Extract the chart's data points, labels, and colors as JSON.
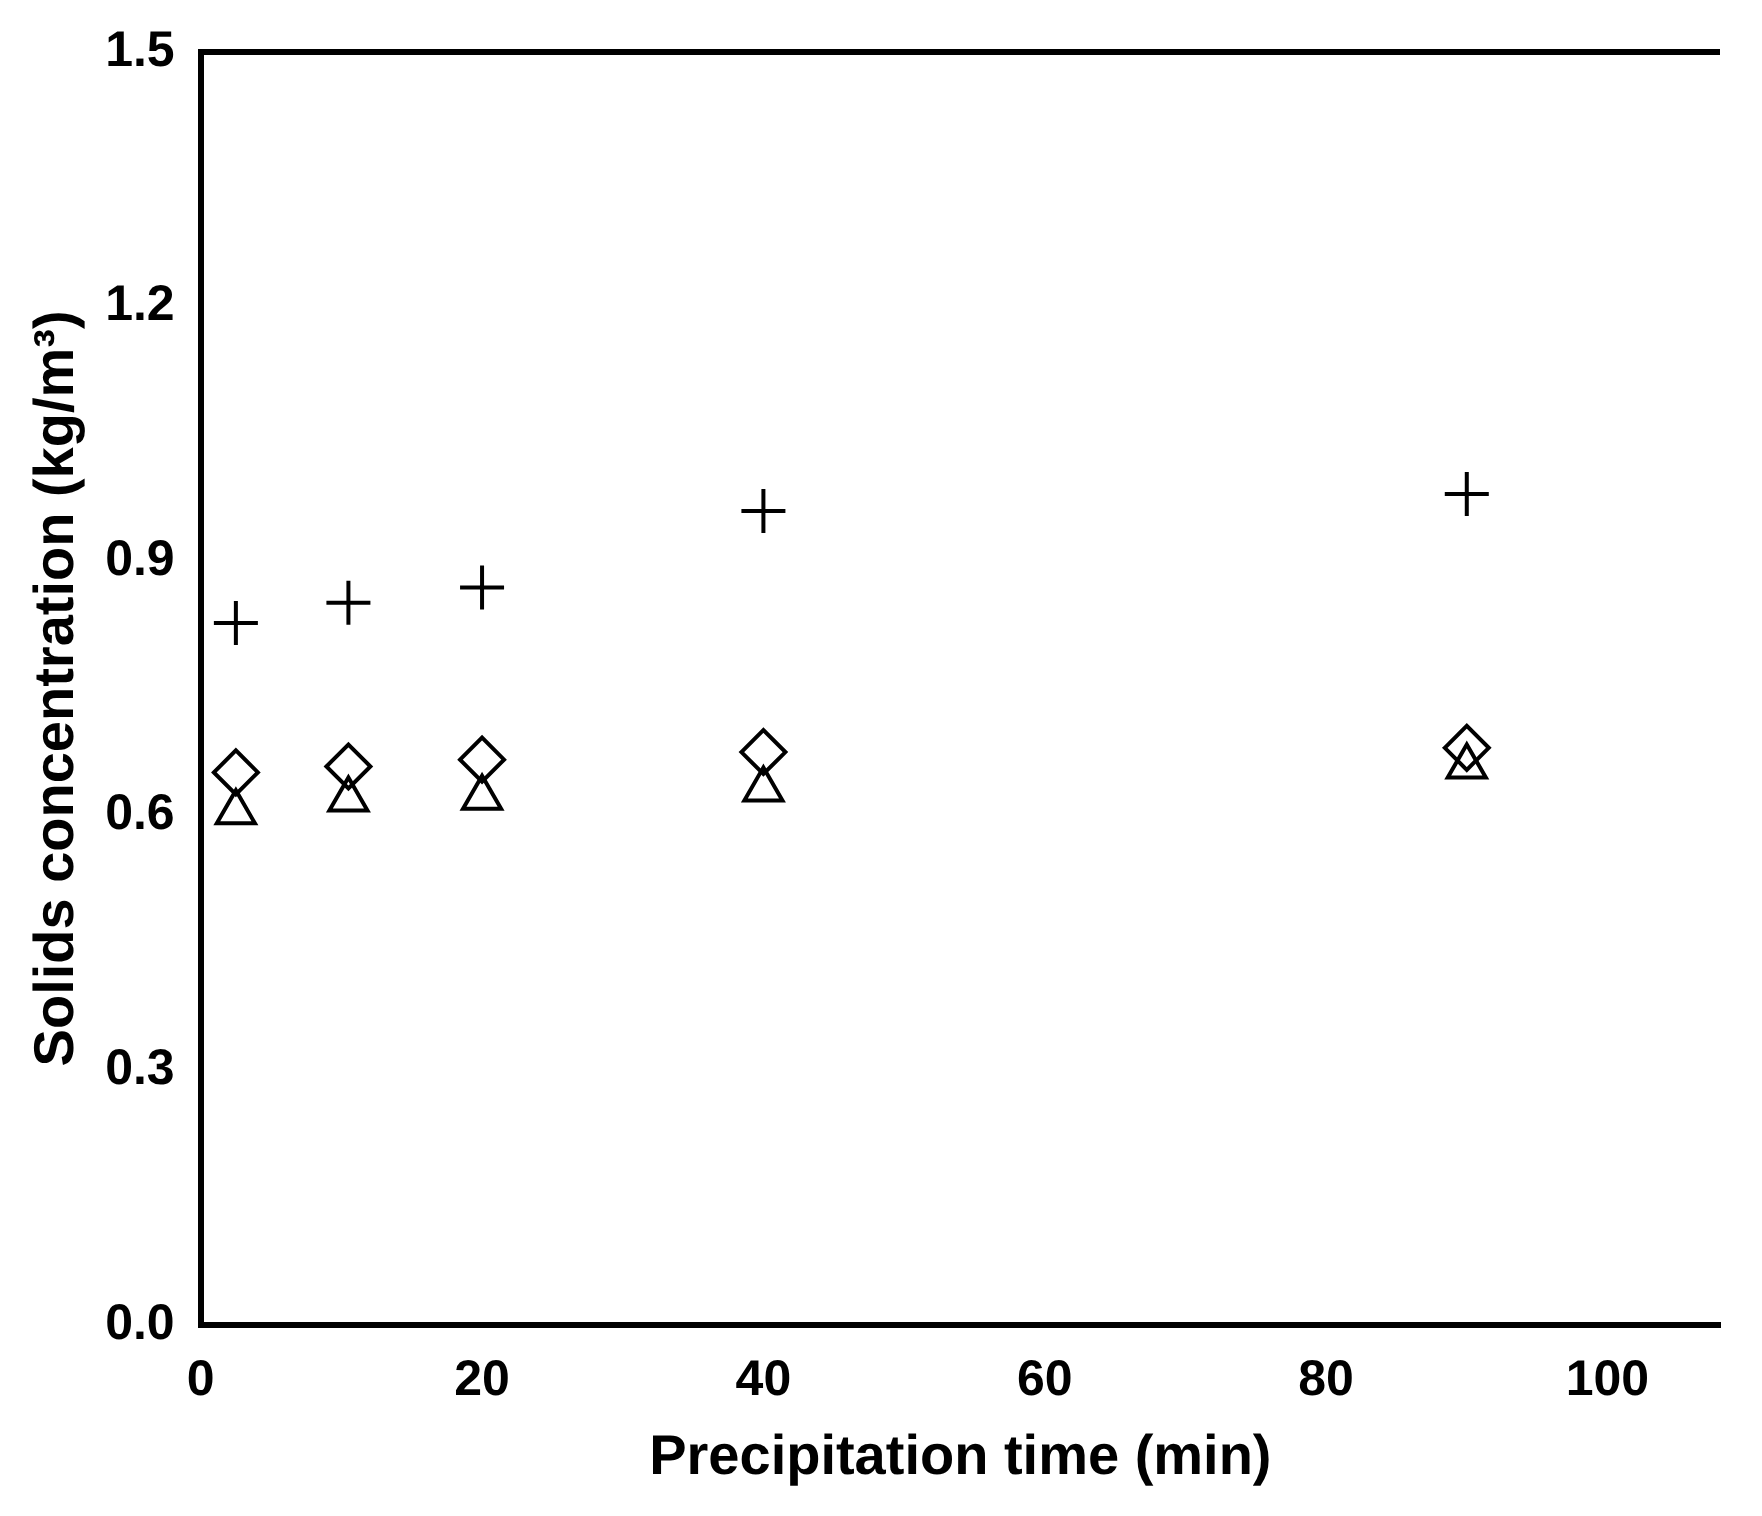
{
  "chart_data": {
    "type": "scatter",
    "xlabel": "Precipitation time (min)",
    "ylabel": "Solids concentration (kg/m³)",
    "x": [
      2.5,
      10.5,
      20,
      40,
      90
    ],
    "series": [
      {
        "color": "#000000",
        "marker": "cross",
        "values": [
          0.827,
          0.851,
          0.869,
          0.959,
          0.979
        ]
      },
      {
        "color": "#000000",
        "marker": "diamond",
        "values": [
          0.651,
          0.658,
          0.666,
          0.675,
          0.68
        ]
      },
      {
        "color": "#000000",
        "marker": "triangle",
        "values": [
          0.604,
          0.619,
          0.621,
          0.631,
          0.658
        ]
      }
    ],
    "xlim": [
      0,
      108
    ],
    "xticks": [
      0,
      20,
      40,
      60,
      80,
      100
    ],
    "ylim": [
      0,
      1.5
    ],
    "yticks": [
      {
        "value": 0,
        "label": "0.0"
      },
      0.3,
      0.6,
      0.9,
      1.2,
      1.5
    ],
    "grid": false,
    "legend": false
  }
}
